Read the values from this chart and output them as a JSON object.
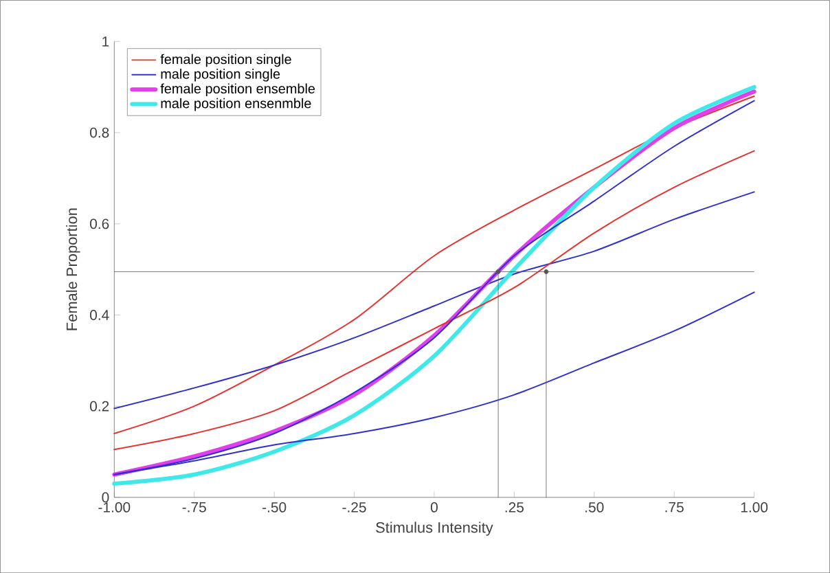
{
  "chart_data": {
    "type": "line",
    "xlabel": "Stimulus Intensity",
    "ylabel": "Female Proportion",
    "x": [
      -1,
      -0.75,
      -0.5,
      -0.25,
      0,
      0.25,
      0.5,
      0.75,
      1
    ],
    "series": [
      {
        "name": "female position single",
        "color": "#e8312f",
        "values": [
          0.14,
          0.2,
          0.29,
          0.39,
          0.53,
          0.63,
          0.72,
          0.81,
          0.88
        ]
      },
      {
        "name": "male position single",
        "color": "#3030d0",
        "values": [
          0.195,
          0.24,
          0.29,
          0.35,
          0.42,
          0.49,
          0.54,
          0.61,
          0.67
        ]
      },
      {
        "name": "female position ensemble",
        "color": "#e040e8",
        "values": [
          0.05,
          0.09,
          0.145,
          0.225,
          0.355,
          0.53,
          0.68,
          0.81,
          0.89
        ]
      },
      {
        "name": "male position ensenmble",
        "color": "#40e8e8",
        "values": [
          0.03,
          0.05,
          0.1,
          0.18,
          0.31,
          0.5,
          0.68,
          0.82,
          0.9
        ]
      },
      {
        "color": "#e8312f",
        "values": [
          0.105,
          0.14,
          0.19,
          0.28,
          0.37,
          0.46,
          0.58,
          0.68,
          0.76
        ]
      },
      {
        "color": "#3030d0",
        "values": [
          0.05,
          0.08,
          0.115,
          0.14,
          0.175,
          0.225,
          0.295,
          0.365,
          0.45
        ]
      },
      {
        "color": "#3030d0",
        "values": [
          0.05,
          0.085,
          0.14,
          0.23,
          0.35,
          0.53,
          0.65,
          0.77,
          0.87
        ]
      },
      {
        "type": "lollipop",
        "color": "#555555",
        "marker": "circle",
        "x": [
          0.2,
          0.35
        ],
        "values": [
          0.495,
          0.495
        ]
      }
    ],
    "xlim": [
      -1,
      1
    ],
    "ylim": [
      0,
      1
    ],
    "xticks": [
      {
        "value": -1,
        "label": "-1.00"
      },
      {
        "value": -0.75,
        "label": "-.75"
      },
      {
        "value": -0.5,
        "label": "-.50"
      },
      {
        "value": -0.25,
        "label": "-.25"
      },
      0,
      {
        "value": 0.25,
        "label": ".25"
      },
      {
        "value": 0.5,
        "label": ".50"
      },
      {
        "value": 0.75,
        "label": ".75"
      },
      {
        "value": 1,
        "label": "1.00"
      }
    ],
    "yticks": [
      0,
      0.2,
      0.4,
      0.6,
      0.8,
      1
    ],
    "ref_lines": [
      {
        "axis": "y",
        "value": 0.495,
        "color": "#555555"
      }
    ],
    "legend": "top left",
    "grid": false,
    "marker": "none",
    "line_style": "solid"
  }
}
